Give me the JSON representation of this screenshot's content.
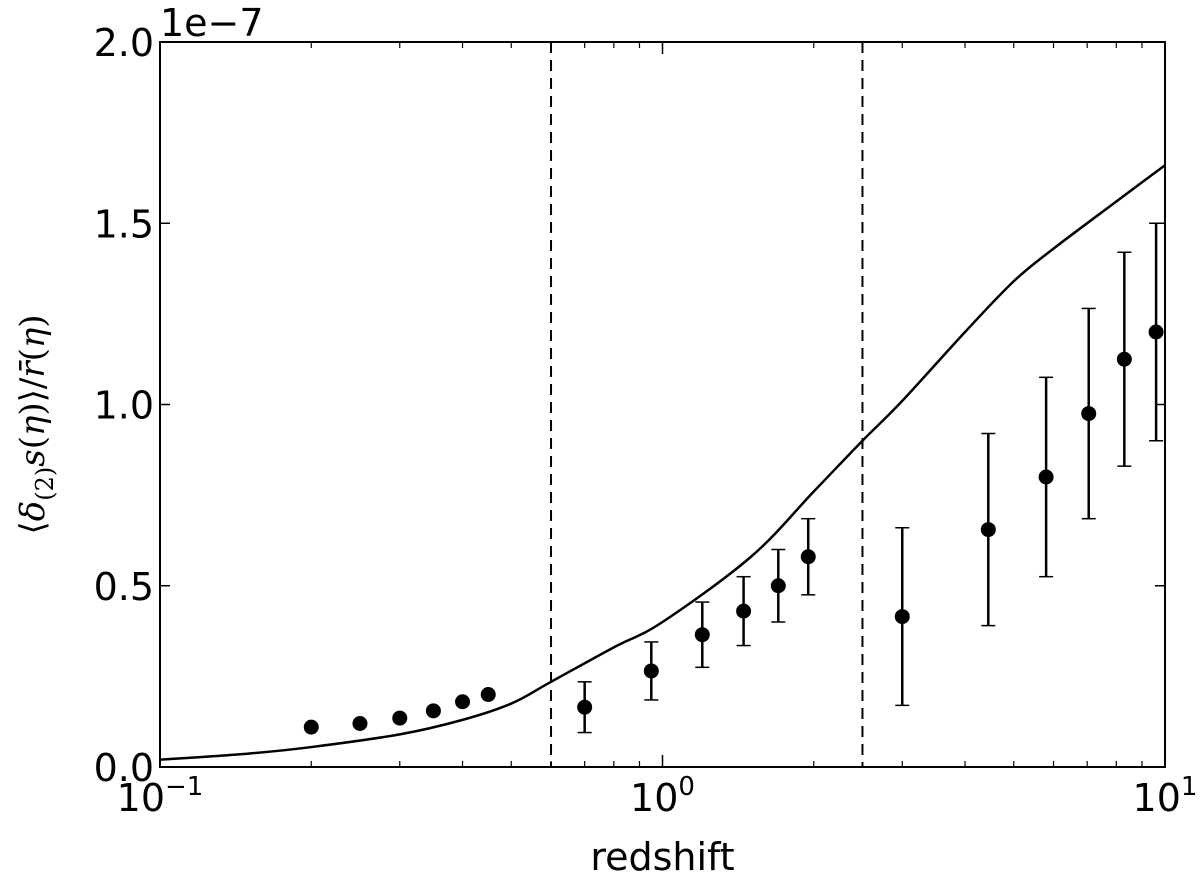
{
  "chart_data": {
    "type": "scatter",
    "xlabel": "redshift",
    "ylabel": "⟨δ(2)s(η)⟩/r̄(η)",
    "y_offset_label": "1e−7",
    "x_scale": "log",
    "xlim": [
      0.1,
      10
    ],
    "ylim": [
      0.0,
      2.0
    ],
    "x_ticks": [
      {
        "value": 0.1,
        "base": "10",
        "exp": "−1"
      },
      {
        "value": 1,
        "base": "10",
        "exp": "0"
      },
      {
        "value": 10,
        "base": "10",
        "exp": "1"
      }
    ],
    "y_ticks": [
      {
        "value": 0.0,
        "label": "0.0"
      },
      {
        "value": 0.5,
        "label": "0.5"
      },
      {
        "value": 1.0,
        "label": "1.0"
      },
      {
        "value": 1.5,
        "label": "1.5"
      },
      {
        "value": 2.0,
        "label": "2.0"
      }
    ],
    "vlines": [
      0.6,
      2.5
    ],
    "curve": {
      "x": [
        0.1,
        0.15,
        0.2,
        0.3,
        0.4,
        0.5,
        0.6,
        0.8,
        1.0,
        1.5,
        2.0,
        2.5,
        3.0,
        4.0,
        5.0,
        6.0,
        8.0,
        10.0
      ],
      "y": [
        0.02,
        0.037,
        0.055,
        0.09,
        0.13,
        0.175,
        0.235,
        0.33,
        0.4,
        0.58,
        0.76,
        0.9,
        1.01,
        1.2,
        1.34,
        1.43,
        1.56,
        1.66
      ]
    },
    "points": [
      {
        "x": 0.2,
        "y": 0.11,
        "err": 0
      },
      {
        "x": 0.25,
        "y": 0.12,
        "err": 0
      },
      {
        "x": 0.3,
        "y": 0.135,
        "err": 0
      },
      {
        "x": 0.35,
        "y": 0.155,
        "err": 0
      },
      {
        "x": 0.4,
        "y": 0.18,
        "err": 0
      },
      {
        "x": 0.45,
        "y": 0.2,
        "err": 0
      },
      {
        "x": 0.7,
        "y": 0.165,
        "err": 0.07
      },
      {
        "x": 0.95,
        "y": 0.265,
        "err": 0.08
      },
      {
        "x": 1.2,
        "y": 0.365,
        "err": 0.09
      },
      {
        "x": 1.45,
        "y": 0.43,
        "err": 0.095
      },
      {
        "x": 1.7,
        "y": 0.5,
        "err": 0.1
      },
      {
        "x": 1.95,
        "y": 0.58,
        "err": 0.105
      },
      {
        "x": 3.0,
        "y": 0.415,
        "err": 0.245
      },
      {
        "x": 4.45,
        "y": 0.655,
        "err": 0.265
      },
      {
        "x": 5.8,
        "y": 0.8,
        "err": 0.275
      },
      {
        "x": 7.05,
        "y": 0.975,
        "err": 0.29
      },
      {
        "x": 8.3,
        "y": 1.125,
        "err": 0.295
      },
      {
        "x": 9.6,
        "y": 1.2,
        "err": 0.3
      }
    ]
  }
}
